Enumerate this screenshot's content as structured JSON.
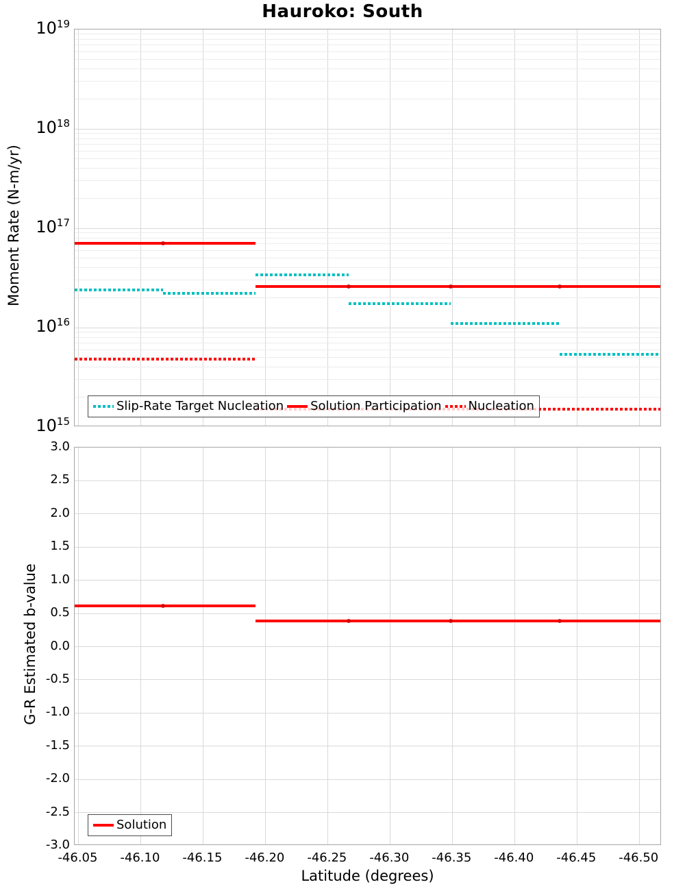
{
  "title": "Hauroko: South",
  "xlabel": "Latitude (degrees)",
  "x_tick_labels": [
    "-46.05",
    "-46.10",
    "-46.15",
    "-46.20",
    "-46.25",
    "-46.30",
    "-46.35",
    "-46.40",
    "-46.45",
    "-46.50"
  ],
  "colors": {
    "solution_red": "#ff0000",
    "target_teal": "#00bfbf",
    "marker_dot": "#cf0000",
    "grid_major": "#d9d9d9",
    "grid_minor": "#ececec",
    "spine": "#a6a6a6",
    "legend_border": "#4a4a4a",
    "text": "#000000"
  },
  "chart_data": [
    {
      "type": "line",
      "panel": "moment-rate",
      "title": "Hauroko: South",
      "ylabel": "Moment Rate (N-m/yr)",
      "yscale": "log",
      "ylim": [
        1000000000000000.0,
        1e+19
      ],
      "y_tick_exponents": [
        19,
        18,
        17,
        16,
        15
      ],
      "xlim": [
        -46.047,
        -46.518
      ],
      "xticks": [
        -46.05,
        -46.1,
        -46.15,
        -46.2,
        -46.25,
        -46.3,
        -46.35,
        -46.4,
        -46.45,
        -46.5
      ],
      "grid": true,
      "legend_position": "lower-left",
      "series": [
        {
          "name": "Slip-Rate Target Nucleation",
          "color_key": "target_teal",
          "line_style": "dotted",
          "segments": [
            {
              "lat_start": -46.047,
              "lat_end": -46.118,
              "value": 2.4e+16
            },
            {
              "lat_start": -46.118,
              "lat_end": -46.192,
              "value": 2.2e+16
            },
            {
              "lat_start": -46.192,
              "lat_end": -46.267,
              "value": 3.4e+16
            },
            {
              "lat_start": -46.267,
              "lat_end": -46.349,
              "value": 1.75e+16
            },
            {
              "lat_start": -46.349,
              "lat_end": -46.436,
              "value": 1.1e+16
            },
            {
              "lat_start": -46.436,
              "lat_end": -46.518,
              "value": 5400000000000000.0
            }
          ]
        },
        {
          "name": "Solution Participation",
          "color_key": "solution_red",
          "line_style": "solid",
          "segments": [
            {
              "lat_start": -46.047,
              "lat_end": -46.192,
              "value": 7e+16
            },
            {
              "lat_start": -46.192,
              "lat_end": -46.518,
              "value": 2.6e+16
            }
          ],
          "vertex_lats": [
            -46.118,
            -46.267,
            -46.349,
            -46.436
          ]
        },
        {
          "name": "Nucleation",
          "color_key": "solution_red",
          "line_style": "dotted",
          "segments": [
            {
              "lat_start": -46.047,
              "lat_end": -46.192,
              "value": 4800000000000000.0
            },
            {
              "lat_start": -46.192,
              "lat_end": -46.518,
              "value": 1500000000000000.0
            }
          ]
        }
      ]
    },
    {
      "type": "line",
      "panel": "b-value",
      "ylabel": "G-R Estimated b-value",
      "yscale": "linear",
      "ylim": [
        -3.0,
        3.0
      ],
      "y_tick_labels": [
        "3.0",
        "2.5",
        "2.0",
        "1.5",
        "1.0",
        "0.5",
        "0.0",
        "-0.5",
        "-1.0",
        "-1.5",
        "-2.0",
        "-2.5",
        "-3.0"
      ],
      "xlim": [
        -46.047,
        -46.518
      ],
      "grid": true,
      "legend_position": "lower-left",
      "series": [
        {
          "name": "Solution",
          "color_key": "solution_red",
          "line_style": "solid",
          "segments": [
            {
              "lat_start": -46.047,
              "lat_end": -46.192,
              "value": 0.61
            },
            {
              "lat_start": -46.192,
              "lat_end": -46.518,
              "value": 0.39
            }
          ],
          "vertex_lats": [
            -46.118,
            -46.267,
            -46.349,
            -46.436
          ]
        }
      ]
    }
  ]
}
